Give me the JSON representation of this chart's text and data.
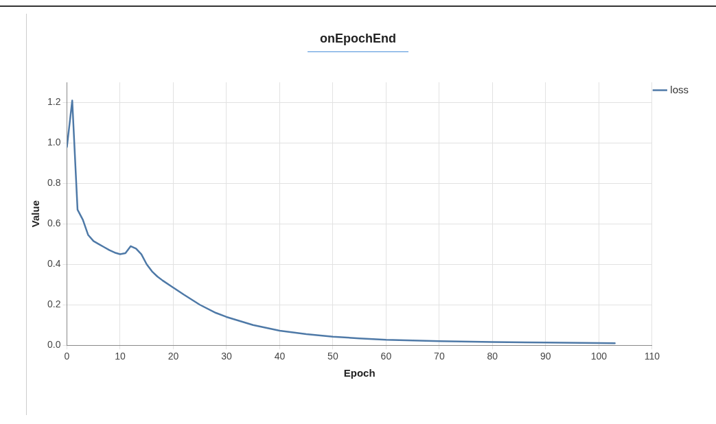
{
  "chart_data": {
    "type": "line",
    "title": "onEpochEnd",
    "xlabel": "Epoch",
    "ylabel": "Value",
    "x": [
      0,
      1,
      2,
      3,
      4,
      5,
      6,
      7,
      8,
      9,
      10,
      11,
      12,
      13,
      14,
      15,
      16,
      17,
      18,
      20,
      22,
      25,
      28,
      30,
      35,
      40,
      45,
      50,
      55,
      60,
      70,
      80,
      90,
      100,
      103
    ],
    "series": [
      {
        "name": "loss",
        "color": "#4e79a7",
        "values": [
          0.98,
          1.21,
          0.67,
          0.62,
          0.545,
          0.515,
          0.5,
          0.485,
          0.47,
          0.458,
          0.45,
          0.455,
          0.49,
          0.478,
          0.45,
          0.4,
          0.365,
          0.34,
          0.32,
          0.285,
          0.25,
          0.2,
          0.16,
          0.14,
          0.1,
          0.072,
          0.055,
          0.042,
          0.034,
          0.027,
          0.02,
          0.016,
          0.013,
          0.011,
          0.01
        ]
      }
    ],
    "xlim": [
      0,
      110
    ],
    "xticks": [
      0,
      10,
      20,
      30,
      40,
      50,
      60,
      70,
      80,
      90,
      100,
      110
    ],
    "ylim": [
      0,
      1.3
    ],
    "yticks": [
      {
        "value": 0,
        "label": "0.0"
      },
      {
        "value": 0.2,
        "label": "0.2"
      },
      {
        "value": 0.4,
        "label": "0.4"
      },
      {
        "value": 0.6,
        "label": "0.6"
      },
      {
        "value": 0.8,
        "label": "0.8"
      },
      {
        "value": 1,
        "label": "1.0"
      },
      {
        "value": 1.2,
        "label": "1.2"
      }
    ],
    "grid": true,
    "legend": "top right",
    "marker": "none",
    "line_style": "solid"
  }
}
